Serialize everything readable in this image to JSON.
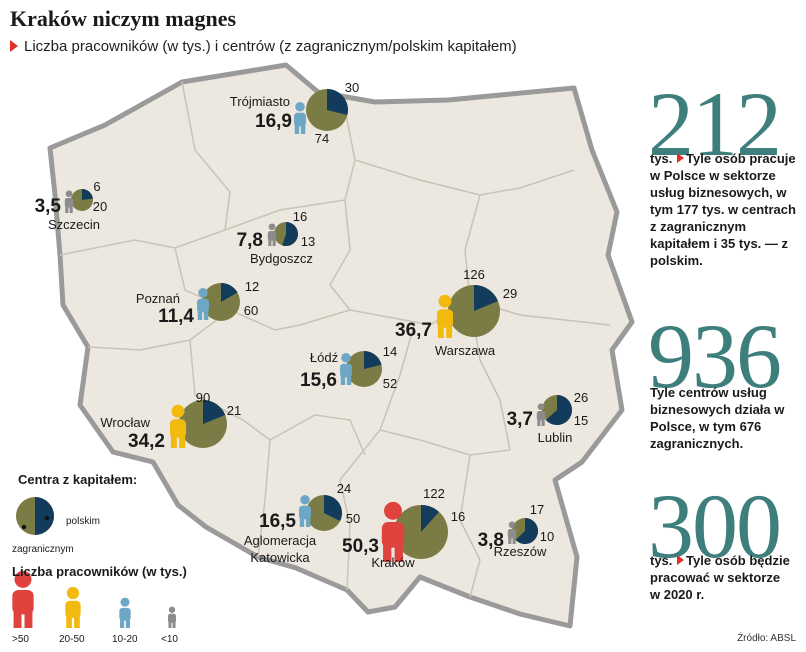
{
  "header": {
    "title": "Kraków niczym magnes",
    "subtitle": "Liczba pracowników (w tys.) i centrów (z zagranicznym/polskim kapitałem)"
  },
  "colors": {
    "map_fill": "#ece8df",
    "map_border": "#9a9a9a",
    "foreign": "#7b7c45",
    "polish": "#133c5c",
    "tier_gt50": "#e0423d",
    "tier_20_50": "#f2b90f",
    "tier_10_20": "#6ea6c5",
    "tier_lt10": "#8c8c8c",
    "accent": "#3e7f7d"
  },
  "cities": [
    {
      "id": "trojmiasto",
      "name": "Trójmiasto",
      "workers": "16,9",
      "tier": "10-20",
      "foreign": 74,
      "polish": 30
    },
    {
      "id": "szczecin",
      "name": "Szczecin",
      "workers": "3,5",
      "tier": "<10",
      "foreign": 20,
      "polish": 6
    },
    {
      "id": "bydgoszcz",
      "name": "Bydgoszcz",
      "workers": "7,8",
      "tier": "<10",
      "foreign": 13,
      "polish": 16
    },
    {
      "id": "poznan",
      "name": "Poznań",
      "workers": "11,4",
      "tier": "10-20",
      "foreign": 60,
      "polish": 12
    },
    {
      "id": "warszawa",
      "name": "Warszawa",
      "workers": "36,7",
      "tier": "20-50",
      "foreign": 126,
      "polish": 29
    },
    {
      "id": "lodz",
      "name": "Łódź",
      "workers": "15,6",
      "tier": "10-20",
      "foreign": 52,
      "polish": 14
    },
    {
      "id": "wroclaw",
      "name": "Wrocław",
      "workers": "34,2",
      "tier": "20-50",
      "foreign": 90,
      "polish": 21
    },
    {
      "id": "lublin",
      "name": "Lublin",
      "workers": "3,7",
      "tier": "<10",
      "foreign": 15,
      "polish": 26
    },
    {
      "id": "katowice",
      "name": "Aglomeracja Katowicka",
      "workers": "16,5",
      "tier": "10-20",
      "foreign": 50,
      "polish": 24
    },
    {
      "id": "krakow",
      "name": "Kraków",
      "workers": "50,3",
      "tier": ">50",
      "foreign": 122,
      "polish": 16
    },
    {
      "id": "rzeszow",
      "name": "Rzeszów",
      "workers": "3,8",
      "tier": "<10",
      "foreign": 10,
      "polish": 17
    }
  ],
  "legend": {
    "centers_title": "Centra z kapitałem:",
    "polish_label": "polskim",
    "foreign_label": "zagranicznym",
    "workers_title": "Liczba pracowników (w tys.)",
    "tiers": [
      ">50",
      "20-50",
      "10-20",
      "<10"
    ]
  },
  "stats": [
    {
      "number": "212",
      "lead": "tys.",
      "text": "Tyle osób pracuje w Polsce w sektorze usług biznesowych, w tym 177 tys. w centrach z zagranicznym kapitałem i 35 tys. — z polskim."
    },
    {
      "number": "936",
      "lead": "",
      "text": "Tyle centrów usług biznesowych działa w Polsce, w tym 676 zagranicznych."
    },
    {
      "number": "300",
      "lead": "tys.",
      "text": "Tyle osób będzie pracować w sektorze w 2020 r."
    }
  ],
  "source": "Źródło: ABSL"
}
